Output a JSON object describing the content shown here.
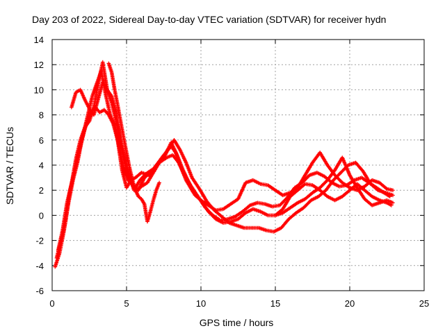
{
  "chart_data": {
    "type": "scatter",
    "title": "Day 203 of 2022, Sidereal Day-to-day VTEC variation (SDTVAR) for receiver hydn",
    "xlabel": "GPS time / hours",
    "ylabel": "SDTVAR / TECUs",
    "xlim": [
      0,
      25
    ],
    "ylim": [
      -6,
      14
    ],
    "xticks": [
      "0",
      "5",
      "10",
      "15",
      "20",
      "25"
    ],
    "yticks": [
      "-6",
      "-4",
      "-2",
      "0",
      "2",
      "4",
      "6",
      "8",
      "10",
      "12",
      "14"
    ],
    "grid": true,
    "marker": "+",
    "series_color": "#ff0000",
    "series": [
      {
        "name": "trace-1",
        "x": [
          0.2,
          0.5,
          0.8,
          1.1,
          1.4,
          1.7,
          2.0,
          2.3,
          2.6,
          2.9,
          3.2,
          3.5,
          3.8,
          4.1,
          4.4,
          4.7,
          5.0,
          5.3,
          5.6,
          6.0,
          6.5,
          7.0,
          7.5,
          8.0,
          8.3,
          8.6,
          9.0,
          9.5,
          10.0,
          10.5,
          11.0,
          11.5,
          12.0,
          12.5,
          13.0,
          13.5,
          14.0,
          14.5,
          15.0,
          15.5,
          16.0,
          16.5,
          17.0,
          17.5,
          18.0,
          18.5,
          19.0,
          19.5,
          20.0,
          20.5,
          21.0,
          21.5,
          22.0,
          22.5,
          22.8
        ],
        "y": [
          -4.1,
          -3.0,
          -1.2,
          1.0,
          2.8,
          4.2,
          6.0,
          7.3,
          8.2,
          8.6,
          8.2,
          8.4,
          8.0,
          7.3,
          6.0,
          3.6,
          2.2,
          2.8,
          3.0,
          3.4,
          3.2,
          4.0,
          4.8,
          5.5,
          5.0,
          4.0,
          2.8,
          1.8,
          1.2,
          0.3,
          -0.3,
          -0.6,
          -0.5,
          -0.3,
          0.2,
          0.5,
          0.3,
          0.0,
          0.0,
          0.5,
          1.5,
          2.0,
          2.5,
          2.4,
          2.0,
          1.5,
          1.2,
          1.5,
          2.0,
          2.5,
          2.0,
          1.5,
          1.2,
          1.0,
          0.8
        ]
      },
      {
        "name": "trace-2",
        "x": [
          0.3,
          0.6,
          0.9,
          1.2,
          1.5,
          1.8,
          2.1,
          2.4,
          2.7,
          3.0,
          3.3,
          3.6,
          3.9,
          4.2,
          4.5,
          4.8,
          5.1,
          5.4,
          5.8,
          6.2,
          6.7,
          7.2,
          7.7,
          8.1,
          8.5,
          8.9,
          9.3,
          9.8,
          10.3,
          10.8,
          11.3,
          11.8,
          12.3,
          12.8,
          13.3,
          13.8,
          14.3,
          14.8,
          15.3,
          15.8,
          16.3,
          16.8,
          17.3,
          17.8,
          18.3,
          18.8,
          19.3,
          19.8,
          20.3,
          20.8,
          21.3,
          21.8,
          22.3,
          22.7
        ],
        "y": [
          -3.4,
          -2.0,
          -0.5,
          2.0,
          3.5,
          5.0,
          6.5,
          8.0,
          9.5,
          10.5,
          11.5,
          9.6,
          8.0,
          7.2,
          5.5,
          3.8,
          2.8,
          2.5,
          2.0,
          3.0,
          3.5,
          4.2,
          4.6,
          4.8,
          4.2,
          3.2,
          2.4,
          1.5,
          0.6,
          0.0,
          -0.4,
          -0.3,
          -0.1,
          0.3,
          0.8,
          1.0,
          0.9,
          0.7,
          0.8,
          1.4,
          2.2,
          2.6,
          3.2,
          3.4,
          3.1,
          2.6,
          2.3,
          2.4,
          2.8,
          3.0,
          2.6,
          2.2,
          1.8,
          1.5
        ]
      },
      {
        "name": "trace-3",
        "x": [
          0.4,
          0.7,
          1.0,
          1.3,
          1.6,
          1.9,
          2.2,
          2.5,
          2.8,
          3.1,
          3.4,
          3.7,
          4.0,
          4.3,
          4.6,
          4.9,
          5.2,
          5.5,
          5.9,
          6.3,
          6.8,
          7.3,
          7.8,
          8.2,
          8.6,
          9.0,
          9.4,
          9.9,
          10.4,
          10.9,
          11.4,
          11.9,
          12.4,
          12.9,
          13.4,
          13.9,
          14.4,
          14.9,
          15.4,
          15.9,
          16.4,
          16.9,
          17.4,
          17.9,
          18.4,
          18.9,
          19.4,
          19.9,
          20.4,
          20.9,
          21.4,
          21.9,
          22.4,
          22.9
        ],
        "y": [
          -2.8,
          -1.2,
          1.0,
          2.5,
          4.5,
          6.0,
          7.0,
          7.5,
          8.6,
          10.5,
          12.2,
          10.0,
          9.5,
          8.2,
          6.0,
          4.5,
          3.2,
          2.0,
          2.8,
          3.3,
          3.7,
          4.3,
          5.3,
          6.0,
          5.2,
          4.2,
          3.0,
          2.1,
          1.1,
          0.4,
          -0.1,
          -0.6,
          -0.8,
          -1.0,
          -1.0,
          -1.0,
          -1.2,
          -1.3,
          -1.0,
          -0.3,
          0.2,
          0.6,
          1.2,
          1.5,
          2.0,
          2.8,
          3.4,
          4.0,
          4.2,
          3.5,
          2.5,
          2.0,
          1.8,
          1.6
        ]
      },
      {
        "name": "trace-4",
        "x": [
          1.3,
          1.6,
          1.9,
          2.2,
          2.5,
          2.8,
          3.1,
          3.4,
          3.7,
          4.0,
          4.4,
          4.8,
          5.2,
          5.6,
          6.0,
          6.4,
          6.8,
          7.2,
          7.6,
          8.0,
          8.4,
          8.8,
          9.2,
          9.6,
          10.0,
          10.5,
          11.0,
          11.5,
          12.0,
          12.5,
          13.0,
          13.5,
          14.0,
          14.5,
          15.0,
          15.5,
          16.0,
          16.5,
          17.0,
          17.5,
          18.0,
          18.5,
          19.0,
          19.5,
          20.0,
          20.5,
          21.0,
          21.5,
          22.0,
          22.5,
          22.9
        ],
        "y": [
          8.6,
          9.8,
          10.0,
          9.2,
          8.5,
          8.0,
          9.3,
          10.6,
          10.0,
          9.0,
          7.0,
          4.5,
          2.8,
          2.0,
          2.3,
          2.6,
          3.4,
          4.2,
          4.8,
          5.8,
          4.8,
          3.6,
          2.6,
          1.6,
          1.2,
          0.8,
          0.4,
          0.5,
          0.9,
          1.3,
          2.6,
          2.8,
          2.5,
          2.4,
          2.0,
          1.6,
          1.8,
          2.2,
          3.2,
          4.2,
          5.0,
          4.0,
          3.2,
          2.6,
          2.2,
          2.0,
          2.3,
          2.8,
          2.6,
          2.1,
          2.0
        ]
      },
      {
        "name": "trace-5",
        "x": [
          3.8,
          4.0,
          4.2,
          4.4,
          4.6,
          4.8,
          5.0,
          5.2,
          5.4,
          5.6,
          5.8,
          6.0,
          6.2,
          6.4,
          6.6,
          6.8,
          7.0,
          7.2
        ],
        "y": [
          12.1,
          11.4,
          10.0,
          8.8,
          7.5,
          6.2,
          5.0,
          3.8,
          2.8,
          2.0,
          1.5,
          1.3,
          0.9,
          -0.5,
          0.3,
          1.2,
          2.0,
          2.6
        ]
      },
      {
        "name": "trace-6",
        "x": [
          15.0,
          15.5,
          16.0,
          16.5,
          17.0,
          17.5,
          18.0,
          18.5,
          19.0,
          19.5,
          20.0,
          20.5,
          21.0,
          21.5,
          22.0,
          22.5,
          22.9
        ],
        "y": [
          0.0,
          0.2,
          0.6,
          1.0,
          1.3,
          1.8,
          2.2,
          2.8,
          3.6,
          4.6,
          3.2,
          2.2,
          1.3,
          0.8,
          1.0,
          1.2,
          1.0
        ]
      }
    ]
  }
}
